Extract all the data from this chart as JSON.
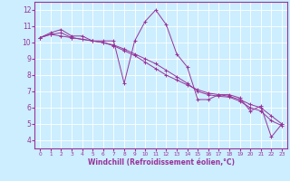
{
  "xlabel": "Windchill (Refroidissement éolien,°C)",
  "background_color": "#cceeff",
  "line_color": "#993399",
  "xlim": [
    -0.5,
    23.5
  ],
  "ylim": [
    3.5,
    12.5
  ],
  "xticks": [
    0,
    1,
    2,
    3,
    4,
    5,
    6,
    7,
    8,
    9,
    10,
    11,
    12,
    13,
    14,
    15,
    16,
    17,
    18,
    19,
    20,
    21,
    22,
    23
  ],
  "yticks": [
    4,
    5,
    6,
    7,
    8,
    9,
    10,
    11,
    12
  ],
  "series1": [
    [
      0,
      10.3
    ],
    [
      1,
      10.6
    ],
    [
      2,
      10.8
    ],
    [
      3,
      10.4
    ],
    [
      4,
      10.4
    ],
    [
      5,
      10.1
    ],
    [
      6,
      10.1
    ],
    [
      7,
      10.1
    ],
    [
      8,
      7.5
    ],
    [
      9,
      10.1
    ],
    [
      10,
      11.3
    ],
    [
      11,
      12.0
    ],
    [
      12,
      11.1
    ],
    [
      13,
      9.3
    ],
    [
      14,
      8.5
    ],
    [
      15,
      6.5
    ],
    [
      16,
      6.5
    ],
    [
      17,
      6.8
    ],
    [
      18,
      6.8
    ],
    [
      19,
      6.6
    ],
    [
      20,
      5.8
    ],
    [
      21,
      6.1
    ],
    [
      22,
      4.2
    ],
    [
      23,
      5.0
    ]
  ],
  "series2": [
    [
      0,
      10.3
    ],
    [
      1,
      10.5
    ],
    [
      2,
      10.4
    ],
    [
      3,
      10.3
    ],
    [
      4,
      10.2
    ],
    [
      5,
      10.1
    ],
    [
      6,
      10.0
    ],
    [
      7,
      9.8
    ],
    [
      8,
      9.5
    ],
    [
      9,
      9.2
    ],
    [
      10,
      8.8
    ],
    [
      11,
      8.4
    ],
    [
      12,
      8.0
    ],
    [
      13,
      7.7
    ],
    [
      14,
      7.4
    ],
    [
      15,
      7.1
    ],
    [
      16,
      6.9
    ],
    [
      17,
      6.8
    ],
    [
      18,
      6.7
    ],
    [
      19,
      6.5
    ],
    [
      20,
      6.2
    ],
    [
      21,
      6.0
    ],
    [
      22,
      5.5
    ],
    [
      23,
      5.0
    ]
  ],
  "series3": [
    [
      0,
      10.3
    ],
    [
      1,
      10.5
    ],
    [
      2,
      10.6
    ],
    [
      3,
      10.3
    ],
    [
      4,
      10.2
    ],
    [
      5,
      10.1
    ],
    [
      6,
      10.0
    ],
    [
      7,
      9.85
    ],
    [
      8,
      9.6
    ],
    [
      9,
      9.3
    ],
    [
      10,
      9.0
    ],
    [
      11,
      8.7
    ],
    [
      12,
      8.3
    ],
    [
      13,
      7.9
    ],
    [
      14,
      7.5
    ],
    [
      15,
      7.0
    ],
    [
      16,
      6.8
    ],
    [
      17,
      6.7
    ],
    [
      18,
      6.65
    ],
    [
      19,
      6.4
    ],
    [
      20,
      6.0
    ],
    [
      21,
      5.8
    ],
    [
      22,
      5.2
    ],
    [
      23,
      4.9
    ]
  ]
}
